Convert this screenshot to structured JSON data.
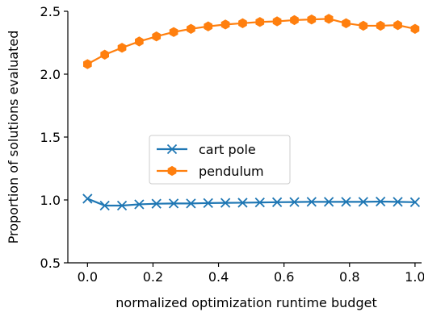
{
  "chart_data": {
    "type": "line",
    "xlabel": "normalized optimization runtime budget",
    "ylabel": "Proportion of solutions evaluated",
    "xlim": [
      -0.06,
      1.02
    ],
    "ylim": [
      0.5,
      2.5
    ],
    "xticks": [
      0.0,
      0.2,
      0.4,
      0.6,
      0.8,
      1.0
    ],
    "xtick_labels": [
      "0.0",
      "0.2",
      "0.4",
      "0.6",
      "0.8",
      "1.0"
    ],
    "yticks": [
      0.5,
      1.0,
      1.5,
      2.0,
      2.5
    ],
    "ytick_labels": [
      "0.5",
      "1.0",
      "1.5",
      "2.0",
      "2.5"
    ],
    "grid": false,
    "legend_position": "center-left",
    "x": [
      0.0,
      0.0526,
      0.1053,
      0.1579,
      0.2105,
      0.2632,
      0.3158,
      0.3684,
      0.4211,
      0.4737,
      0.5263,
      0.5789,
      0.6316,
      0.6842,
      0.7368,
      0.7895,
      0.8421,
      0.8947,
      0.9474,
      1.0
    ],
    "series": [
      {
        "name": "cart pole",
        "color": "#1f77b4",
        "marker": "x",
        "values": [
          1.01,
          0.955,
          0.955,
          0.965,
          0.97,
          0.972,
          0.972,
          0.975,
          0.977,
          0.978,
          0.98,
          0.982,
          0.983,
          0.985,
          0.985,
          0.985,
          0.985,
          0.987,
          0.985,
          0.982
        ]
      },
      {
        "name": "pendulum",
        "color": "#ff7f0e",
        "marker": "hexagon",
        "values": [
          2.08,
          2.155,
          2.21,
          2.26,
          2.3,
          2.335,
          2.36,
          2.38,
          2.395,
          2.405,
          2.415,
          2.42,
          2.43,
          2.435,
          2.44,
          2.405,
          2.385,
          2.385,
          2.39,
          2.36
        ]
      }
    ]
  }
}
